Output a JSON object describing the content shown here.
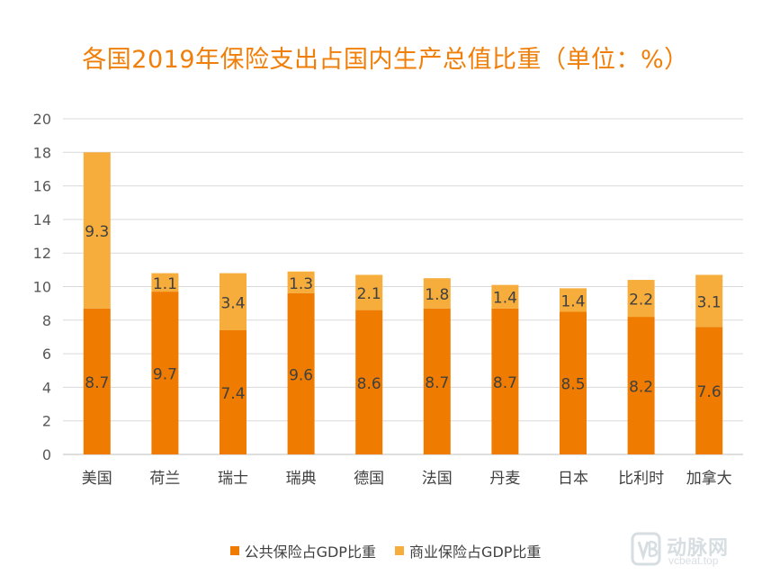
{
  "chart_data": {
    "type": "bar",
    "stacked": true,
    "title": "各国2019年保险支出占国内生产总值比重（单位：%）",
    "categories": [
      "美国",
      "荷兰",
      "瑞士",
      "瑞典",
      "德国",
      "法国",
      "丹麦",
      "日本",
      "比利时",
      "加拿大"
    ],
    "series": [
      {
        "name": "公共保险占GDP比重",
        "color": "#ef7c00",
        "values": [
          8.7,
          9.7,
          7.4,
          9.6,
          8.6,
          8.7,
          8.7,
          8.5,
          8.2,
          7.6
        ],
        "labels": [
          "8.7",
          "9.7",
          "7.4",
          "9.6",
          "8.6",
          "8.7",
          "8.7",
          "8.5",
          "8.2",
          "7.6"
        ]
      },
      {
        "name": "商业保险占GDP比重",
        "color": "#f6ad3c",
        "values": [
          9.3,
          1.1,
          3.4,
          1.3,
          2.1,
          1.8,
          1.4,
          1.4,
          2.2,
          3.1
        ],
        "labels": [
          "9.3",
          "1.1",
          "3.4",
          "1.3",
          "2.1",
          "1.8",
          "1.4",
          "1.4",
          "2.2",
          "3.1"
        ]
      }
    ],
    "ylim": [
      0,
      20
    ],
    "yticks": [
      "0",
      "2",
      "4",
      "6",
      "8",
      "10",
      "12",
      "14",
      "16",
      "18",
      "20"
    ],
    "grid": true,
    "legend_position": "bottom"
  },
  "watermark": {
    "text": "动脉网",
    "sub": "vcbeat.top"
  }
}
